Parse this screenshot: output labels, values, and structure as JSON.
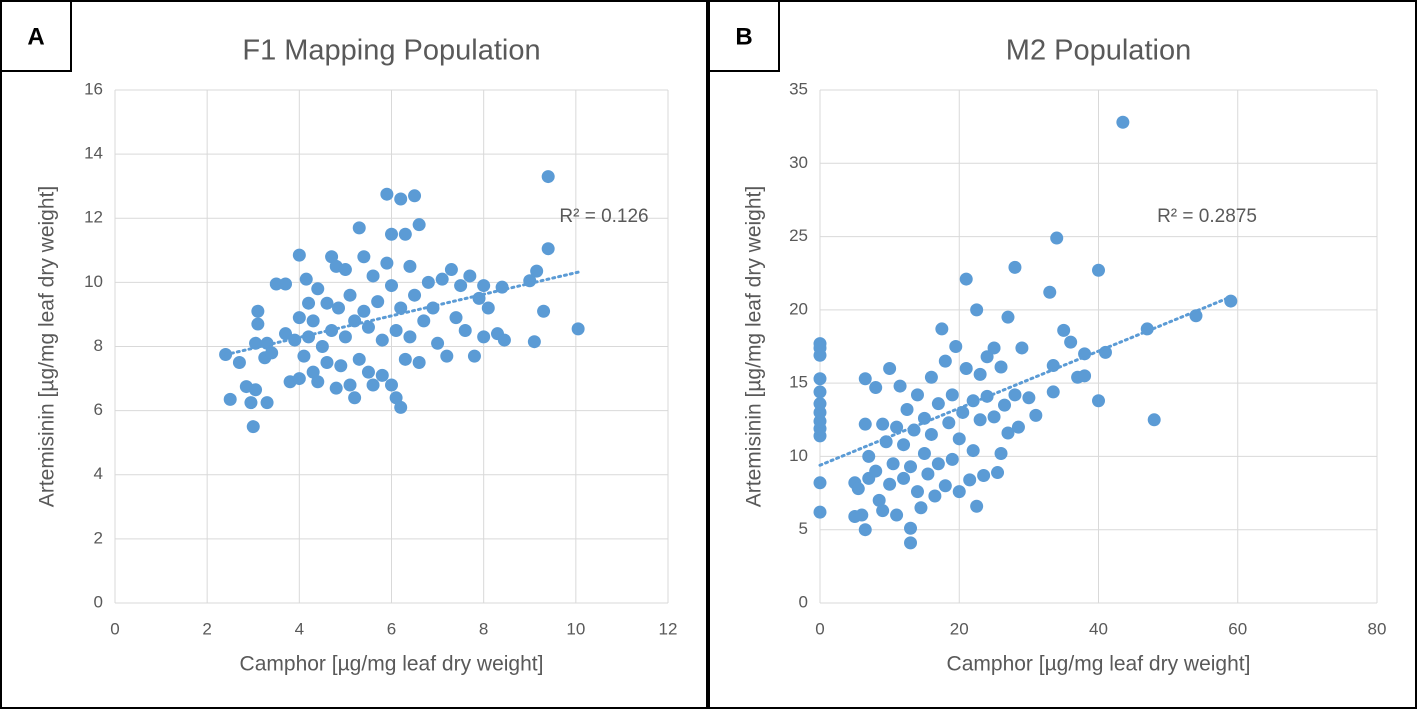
{
  "chart_data": [
    {
      "type": "scatter",
      "panel": "A",
      "title": "F1 Mapping Population",
      "x_label": "Camphor [µg/mg leaf dry weight]",
      "y_label": "Artemisinin [µg/mg leaf dry weight]",
      "annotation": "R² = 0.126",
      "trendline": true,
      "grid": true,
      "color": "#5b9bd5",
      "xlim": [
        0,
        12
      ],
      "xticks": [
        0,
        2,
        4,
        6,
        8,
        10,
        12
      ],
      "ylim": [
        0,
        16
      ],
      "yticks": [
        0,
        2,
        4,
        6,
        8,
        10,
        12,
        14,
        16
      ],
      "x": [
        2.4,
        2.5,
        2.7,
        2.85,
        2.95,
        3.0,
        3.05,
        3.05,
        3.1,
        3.1,
        3.25,
        3.3,
        3.3,
        3.4,
        3.5,
        3.7,
        3.7,
        3.8,
        3.9,
        4.0,
        4.0,
        4.0,
        4.1,
        4.15,
        4.2,
        4.2,
        4.3,
        4.3,
        4.4,
        4.4,
        4.5,
        4.6,
        4.6,
        4.7,
        4.7,
        4.8,
        4.8,
        4.85,
        4.9,
        5.0,
        5.0,
        5.1,
        5.1,
        5.2,
        5.2,
        5.3,
        5.3,
        5.4,
        5.4,
        5.5,
        5.5,
        5.6,
        5.6,
        5.7,
        5.8,
        5.8,
        5.9,
        5.9,
        6.0,
        6.0,
        6.0,
        6.1,
        6.1,
        6.2,
        6.2,
        6.2,
        6.3,
        6.3,
        6.4,
        6.4,
        6.5,
        6.5,
        6.6,
        6.6,
        6.7,
        6.8,
        6.9,
        7.0,
        7.1,
        7.2,
        7.3,
        7.4,
        7.5,
        7.6,
        7.7,
        7.8,
        7.9,
        8.0,
        8.0,
        8.1,
        8.3,
        8.4,
        8.45,
        9.0,
        9.1,
        9.15,
        9.3,
        9.4,
        9.4,
        10.05
      ],
      "values": [
        7.75,
        6.35,
        7.5,
        6.75,
        6.25,
        5.5,
        6.65,
        8.1,
        9.1,
        8.7,
        7.65,
        6.25,
        8.1,
        7.8,
        9.95,
        9.95,
        8.4,
        6.9,
        8.2,
        10.85,
        8.9,
        7.0,
        7.7,
        10.1,
        9.35,
        8.3,
        7.2,
        8.8,
        9.8,
        6.9,
        8.0,
        9.35,
        7.5,
        10.8,
        8.5,
        6.7,
        10.5,
        9.2,
        7.4,
        8.3,
        10.4,
        6.8,
        9.6,
        8.8,
        6.4,
        11.7,
        7.6,
        9.1,
        10.8,
        7.2,
        8.6,
        10.2,
        6.8,
        9.4,
        8.2,
        7.1,
        12.75,
        10.6,
        9.9,
        6.8,
        11.5,
        8.5,
        6.4,
        12.6,
        6.1,
        9.2,
        11.5,
        7.6,
        10.5,
        8.3,
        12.7,
        9.6,
        11.8,
        7.5,
        8.8,
        10.0,
        9.2,
        8.1,
        10.1,
        7.7,
        10.4,
        8.9,
        9.9,
        8.5,
        10.2,
        7.7,
        9.5,
        8.3,
        9.9,
        9.2,
        8.4,
        9.85,
        8.2,
        10.05,
        8.15,
        10.35,
        9.1,
        11.05,
        13.3,
        8.55
      ]
    },
    {
      "type": "scatter",
      "panel": "B",
      "title": "M2 Population",
      "x_label": "Camphor [µg/mg leaf dry weight]",
      "y_label": "Artemisinin [µg/mg leaf dry weight]",
      "annotation": "R² = 0.2875",
      "trendline": true,
      "grid": true,
      "color": "#5b9bd5",
      "xlim": [
        0,
        80
      ],
      "xticks": [
        0,
        20,
        40,
        60,
        80
      ],
      "ylim": [
        0,
        35
      ],
      "yticks": [
        0,
        5,
        10,
        15,
        20,
        25,
        30,
        35
      ],
      "x": [
        0,
        0,
        0,
        0,
        0,
        0,
        0,
        0,
        0,
        0,
        0,
        0,
        5,
        5,
        5.5,
        6,
        6.5,
        6.5,
        6.5,
        7,
        7,
        8,
        8,
        8.5,
        9,
        9,
        9.5,
        10,
        10,
        10.5,
        11,
        11,
        11.5,
        12,
        12,
        12.5,
        13,
        13,
        13,
        13.5,
        14,
        14,
        14.5,
        15,
        15,
        15.5,
        16,
        16,
        16.5,
        17,
        17,
        17.5,
        18,
        18,
        18.5,
        19,
        19,
        19.5,
        20,
        20,
        20.5,
        21,
        21,
        21.5,
        22,
        22,
        22.5,
        22.5,
        23,
        23,
        23.5,
        24,
        24,
        25,
        25,
        25.5,
        26,
        26,
        26.5,
        27,
        27,
        28,
        28,
        28.5,
        29,
        30,
        31,
        33,
        33.5,
        34,
        33.5,
        35,
        36,
        37,
        38,
        38,
        40,
        40,
        41,
        43.5,
        47,
        48,
        54,
        59
      ],
      "values": [
        6.2,
        8.2,
        11.4,
        11.9,
        12.4,
        13.0,
        13.6,
        14.4,
        15.3,
        16.9,
        17.7,
        17.4,
        8.2,
        5.9,
        7.8,
        6.0,
        5.0,
        15.3,
        12.2,
        8.5,
        10.0,
        9.0,
        14.7,
        7.0,
        12.2,
        6.3,
        11.0,
        8.1,
        16.0,
        9.5,
        12.0,
        6.0,
        14.8,
        8.5,
        10.8,
        13.2,
        5.1,
        4.1,
        9.3,
        11.8,
        14.2,
        7.6,
        6.5,
        10.2,
        12.6,
        8.8,
        11.5,
        15.4,
        7.3,
        13.6,
        9.5,
        18.7,
        16.5,
        8.0,
        12.3,
        9.8,
        14.2,
        17.5,
        11.2,
        7.6,
        13.0,
        22.1,
        16.0,
        8.4,
        10.4,
        13.8,
        20.0,
        6.6,
        15.6,
        12.5,
        8.7,
        16.8,
        14.1,
        17.4,
        12.7,
        8.9,
        16.1,
        10.2,
        13.5,
        19.5,
        11.6,
        22.9,
        14.2,
        12.0,
        17.4,
        14.0,
        12.8,
        21.2,
        16.2,
        24.9,
        14.4,
        18.6,
        17.8,
        15.4,
        15.5,
        17.0,
        13.8,
        22.7,
        17.1,
        32.8,
        18.7,
        12.5,
        19.6,
        20.6
      ]
    }
  ]
}
